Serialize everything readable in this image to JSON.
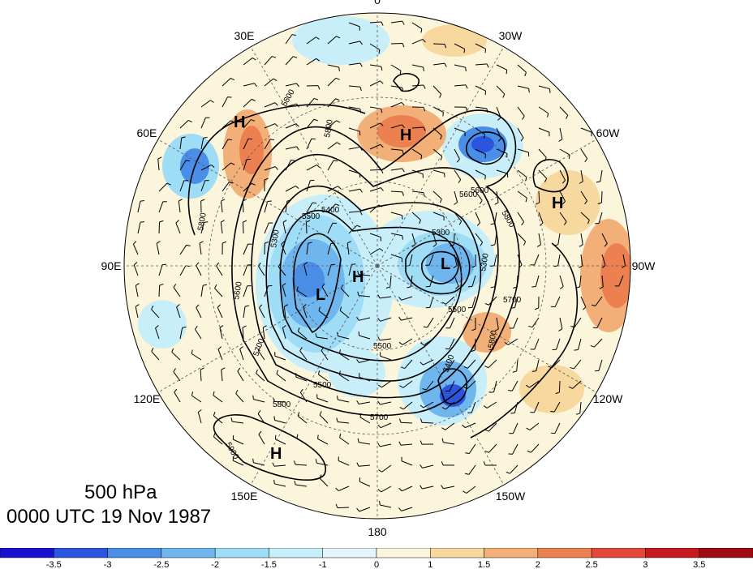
{
  "map": {
    "longitude_labels": [
      {
        "text": "0",
        "bearing": 0
      },
      {
        "text": "30W",
        "bearing": 30
      },
      {
        "text": "60W",
        "bearing": 60
      },
      {
        "text": "90W",
        "bearing": 90
      },
      {
        "text": "120W",
        "bearing": 120
      },
      {
        "text": "150W",
        "bearing": 150
      },
      {
        "text": "180",
        "bearing": 180
      },
      {
        "text": "150E",
        "bearing": 210
      },
      {
        "text": "120E",
        "bearing": 240
      },
      {
        "text": "90E",
        "bearing": 270
      },
      {
        "text": "60E",
        "bearing": 300
      },
      {
        "text": "30E",
        "bearing": 330
      }
    ],
    "contour_labels": [
      "5800",
      "5600",
      "5500",
      "5400",
      "5300",
      "5300",
      "5500",
      "5400",
      "5700",
      "5800",
      "5600",
      "5800",
      "5300",
      "5700",
      "5800",
      "5500",
      "5800",
      "5800",
      "5900",
      "5500",
      "5700",
      "5600"
    ],
    "pressure_centers": [
      "H",
      "H",
      "H",
      "H",
      "H",
      "L",
      "L"
    ]
  },
  "caption": {
    "level": "500 hPa",
    "time": "0000 UTC 19 Nov 1987"
  },
  "colorbar": {
    "ticks": [
      "-3.5",
      "-3",
      "-2.5",
      "-2",
      "-1.5",
      "-1",
      "0",
      "1",
      "1.5",
      "2",
      "2.5",
      "3",
      "3.5"
    ],
    "colors": [
      "#1a10d0",
      "#2b55e0",
      "#4a8ee8",
      "#6fb6ef",
      "#9fdcf5",
      "#c8eefa",
      "#e4f6fb",
      "#fbf5dc",
      "#f7d9a0",
      "#f2b078",
      "#ec8050",
      "#e4483a",
      "#c61a1e",
      "#a00a12"
    ]
  }
}
